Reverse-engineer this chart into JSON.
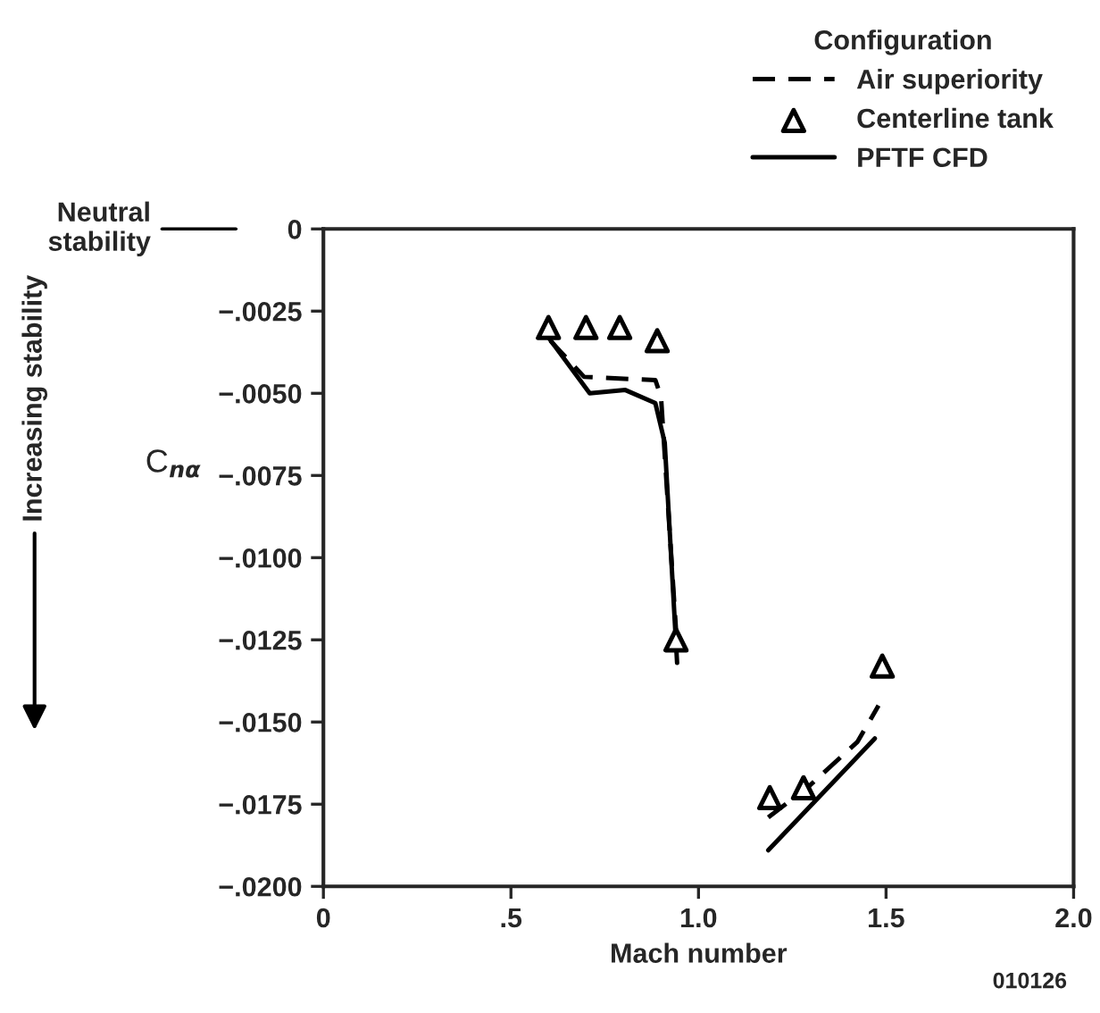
{
  "chart_data": {
    "type": "line",
    "xlabel": "Mach number",
    "ylabel": "C$_{nα}$",
    "legend_title": "Configuration",
    "legend": "top right",
    "xlim": [
      0,
      2.0
    ],
    "xticks": [
      0,
      {
        "value": 0.5,
        "label": ".5"
      },
      {
        "value": 1.0,
        "label": "1.0"
      },
      {
        "value": 1.5,
        "label": "1.5"
      },
      {
        "value": 2.0,
        "label": "2.0"
      }
    ],
    "ylim": [
      -0.02,
      0
    ],
    "yticks": [
      0,
      {
        "value": -0.0025,
        "label": "−.0025"
      },
      {
        "value": -0.005,
        "label": "−.0050"
      },
      {
        "value": -0.0075,
        "label": "−.0075"
      },
      {
        "value": -0.01,
        "label": "−.0100"
      },
      {
        "value": -0.0125,
        "label": "−.0125"
      },
      {
        "value": -0.015,
        "label": "−.0150"
      },
      {
        "value": -0.0175,
        "label": "−.0175"
      },
      {
        "value": -0.02,
        "label": "−.0200"
      }
    ],
    "grid": false,
    "series": [
      {
        "name": "Air superiority",
        "line_style": "dashed",
        "marker": "none",
        "color": "#000000",
        "x": [
          0.605,
          0.695,
          0.885,
          0.9,
          0.94,
          null,
          1.186,
          1.29,
          1.424,
          1.48
        ],
        "values": [
          -0.0034,
          -0.0045,
          -0.0046,
          -0.0051,
          -0.0122,
          null,
          -0.0179,
          -0.017,
          -0.0156,
          -0.0145
        ]
      },
      {
        "name": "Centerline tank",
        "type": "scatter",
        "marker": "triangle",
        "color": "#000000",
        "x": [
          0.6,
          0.7,
          0.79,
          0.89,
          0.94,
          1.19,
          1.28,
          1.49
        ],
        "values": [
          -0.003,
          -0.003,
          -0.003,
          -0.0034,
          -0.0125,
          -0.0173,
          -0.017,
          -0.0133
        ]
      },
      {
        "name": "PFTF CFD",
        "line_style": "solid",
        "marker": "none",
        "color": "#000000",
        "x": [
          0.6,
          0.71,
          0.805,
          0.885,
          0.91,
          0.943,
          null,
          1.186,
          1.47
        ],
        "values": [
          -0.0033,
          -0.005,
          -0.0049,
          -0.0053,
          -0.0065,
          -0.0132,
          null,
          -0.0189,
          -0.0155
        ]
      }
    ],
    "annotations": [
      "Neutral\nstability",
      "Increasing stability",
      "010126"
    ]
  }
}
